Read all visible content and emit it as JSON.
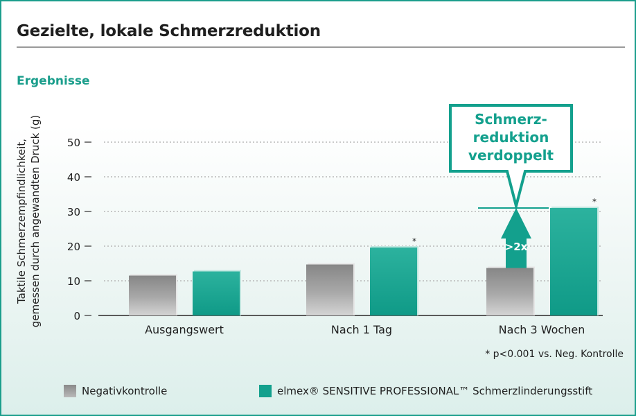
{
  "header": {
    "title": "Gezielte, lokale Schmerzreduktion",
    "section": "Ergebnisse"
  },
  "chart_data": {
    "type": "bar",
    "categories": [
      "Ausgangswert",
      "Nach 1 Tag",
      "Nach 3 Wochen"
    ],
    "series": [
      {
        "name": "Negativkontrolle",
        "values": [
          11.5,
          14.7,
          13.7
        ],
        "color": "#9a9a9a"
      },
      {
        "name": "elmex® SENSITIVE PROFESSIONAL™ Schmerzlinderungsstift",
        "values": [
          12.7,
          19.6,
          31.0
        ],
        "color": "#13a08d"
      }
    ],
    "significance_marks": [
      "",
      "*",
      "*"
    ],
    "ylabel_line1": "Taktile Schmerzempfindlichkeit,",
    "ylabel_line2": "gemessen durch angewandten Druck (g)",
    "yticks": [
      0,
      10,
      20,
      30,
      40,
      50
    ],
    "ylim": [
      0,
      50
    ],
    "grid": true,
    "annotation": {
      "callout_lines": [
        "Schmerz-",
        "reduktion",
        "verdoppelt"
      ],
      "arrow_label": ">2x",
      "category": "Nach 3 Wochen"
    },
    "footnote": "* p<0.001 vs. Neg. Kontrolle"
  },
  "legend": {
    "negative": "Negativkontrolle",
    "elmex": "elmex® SENSITIVE PROFESSIONAL™ Schmerzlinderungsstift"
  }
}
